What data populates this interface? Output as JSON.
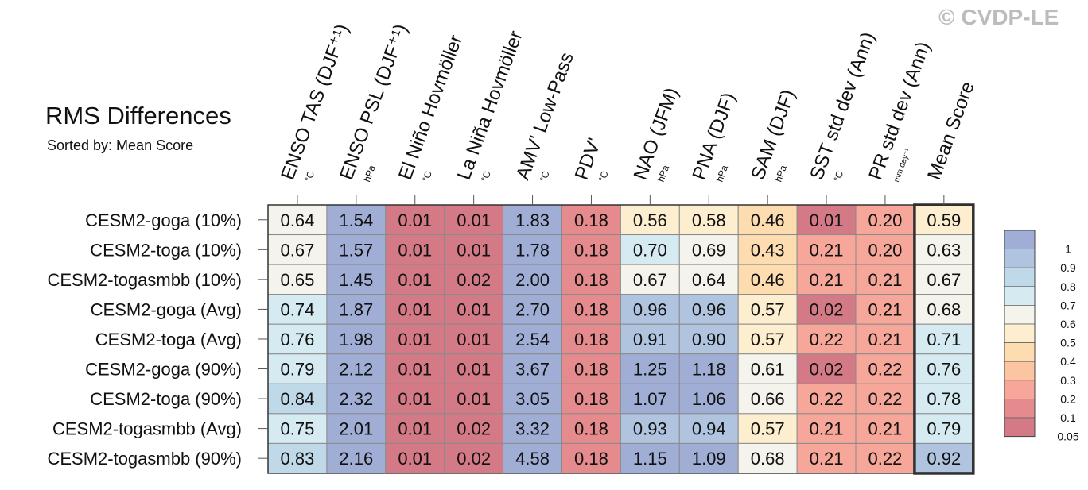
{
  "watermark": "© CVDP-LE",
  "chart_data": {
    "type": "heatmap",
    "title": "RMS Differences",
    "subtitle": "Sorted by: Mean Score",
    "columns": [
      {
        "label": "ENSO TAS (DJF⁺¹)",
        "unit": "°C"
      },
      {
        "label": "ENSO PSL (DJF⁺¹)",
        "unit": "hPa"
      },
      {
        "label": "El Niño Hovmöller",
        "unit": "°C"
      },
      {
        "label": "La Niña Hovmöller",
        "unit": "°C"
      },
      {
        "label": "AMV' Low-Pass",
        "unit": "°C"
      },
      {
        "label": "PDV'",
        "unit": "°C"
      },
      {
        "label": "NAO (JFM)",
        "unit": "hPa"
      },
      {
        "label": "PNA (DJF)",
        "unit": "hPa"
      },
      {
        "label": "SAM (DJF)",
        "unit": "hPa"
      },
      {
        "label": "SST std dev (Ann)",
        "unit": "°C"
      },
      {
        "label": "PR std dev (Ann)",
        "unit": "mm day⁻¹"
      },
      {
        "label": "Mean Score",
        "unit": ""
      }
    ],
    "rows": [
      "CESM2-goga (10%)",
      "CESM2-toga (10%)",
      "CESM2-togasmbb (10%)",
      "CESM2-goga (Avg)",
      "CESM2-toga (Avg)",
      "CESM2-goga (90%)",
      "CESM2-toga (90%)",
      "CESM2-togasmbb (Avg)",
      "CESM2-togasmbb (90%)"
    ],
    "values": [
      [
        "0.64",
        "1.54",
        "0.01",
        "0.01",
        "1.83",
        "0.18",
        "0.56",
        "0.58",
        "0.46",
        "0.01",
        "0.20",
        "0.59"
      ],
      [
        "0.67",
        "1.57",
        "0.01",
        "0.01",
        "1.78",
        "0.18",
        "0.70",
        "0.69",
        "0.43",
        "0.21",
        "0.20",
        "0.63"
      ],
      [
        "0.65",
        "1.45",
        "0.01",
        "0.02",
        "2.00",
        "0.18",
        "0.67",
        "0.64",
        "0.46",
        "0.21",
        "0.21",
        "0.67"
      ],
      [
        "0.74",
        "1.87",
        "0.01",
        "0.01",
        "2.70",
        "0.18",
        "0.96",
        "0.96",
        "0.57",
        "0.02",
        "0.21",
        "0.68"
      ],
      [
        "0.76",
        "1.98",
        "0.01",
        "0.01",
        "2.54",
        "0.18",
        "0.91",
        "0.90",
        "0.57",
        "0.22",
        "0.21",
        "0.71"
      ],
      [
        "0.79",
        "2.12",
        "0.01",
        "0.01",
        "3.67",
        "0.18",
        "1.25",
        "1.18",
        "0.61",
        "0.02",
        "0.22",
        "0.76"
      ],
      [
        "0.84",
        "2.32",
        "0.01",
        "0.01",
        "3.05",
        "0.18",
        "1.07",
        "1.06",
        "0.66",
        "0.22",
        "0.22",
        "0.78"
      ],
      [
        "0.75",
        "2.01",
        "0.01",
        "0.02",
        "3.32",
        "0.18",
        "0.93",
        "0.94",
        "0.57",
        "0.21",
        "0.21",
        "0.79"
      ],
      [
        "0.83",
        "2.16",
        "0.01",
        "0.02",
        "4.58",
        "0.18",
        "1.15",
        "1.09",
        "0.68",
        "0.21",
        "0.22",
        "0.92"
      ]
    ],
    "colorbar": {
      "labels": [
        "1",
        "0.9",
        "0.8",
        "0.7",
        "0.6",
        "0.5",
        "0.4",
        "0.3",
        "0.2",
        "0.1",
        "0.05"
      ],
      "colors": [
        "#a0aed6",
        "#b0c4df",
        "#c0d9e8",
        "#d6eaf2",
        "#f4f4ec",
        "#fdeed0",
        "#fddcb0",
        "#fcc5a2",
        "#f6a79a",
        "#e58b8e",
        "#d47a87"
      ]
    },
    "highlight_column": "Mean Score"
  }
}
